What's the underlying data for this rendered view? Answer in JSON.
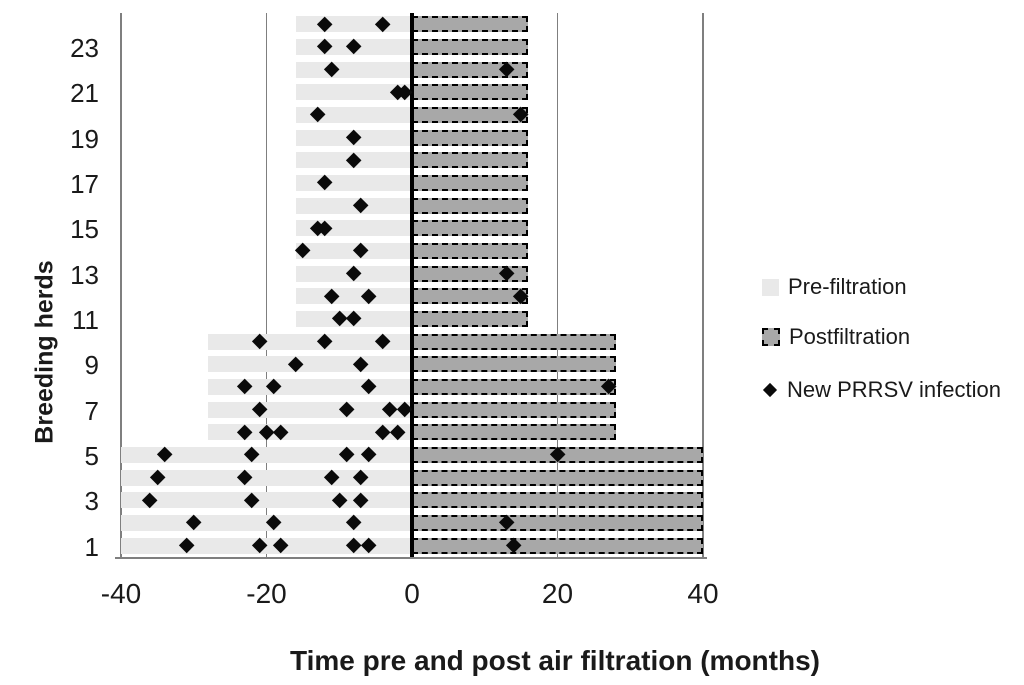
{
  "chart_data": {
    "type": "bar",
    "subtype": "diverging-horizontal-with-scatter-markers",
    "xlabel": "Time pre and post air filtration (months)",
    "ylabel": "Breeding herds",
    "xlim": [
      -40,
      40
    ],
    "x_ticks": [
      -40,
      -20,
      0,
      20,
      40
    ],
    "x_gridlines": [
      -40,
      -20,
      20,
      40
    ],
    "y_ticks": [
      1,
      3,
      5,
      7,
      9,
      11,
      13,
      15,
      17,
      19,
      21,
      23
    ],
    "grid": "vertical-major-only",
    "legend_position": "right",
    "legend": [
      {
        "label": "Pre-filtration",
        "swatch": "light-gray-square"
      },
      {
        "label": "Postfiltration",
        "swatch": "gray-dashed-square"
      },
      {
        "label": "New PRRSV infection",
        "swatch": "black-diamond"
      }
    ],
    "series_units": "months",
    "herds": [
      {
        "herd": 1,
        "pre": -40,
        "post": 40,
        "infections": [
          -31,
          -21,
          -18,
          -8,
          -6,
          14
        ]
      },
      {
        "herd": 2,
        "pre": -40,
        "post": 40,
        "infections": [
          -30,
          -19,
          -8,
          13
        ]
      },
      {
        "herd": 3,
        "pre": -40,
        "post": 40,
        "infections": [
          -36,
          -22,
          -10,
          -7
        ]
      },
      {
        "herd": 4,
        "pre": -40,
        "post": 40,
        "infections": [
          -35,
          -23,
          -11,
          -7
        ]
      },
      {
        "herd": 5,
        "pre": -40,
        "post": 40,
        "infections": [
          -34,
          -22,
          -9,
          -6,
          20
        ]
      },
      {
        "herd": 6,
        "pre": -28,
        "post": 28,
        "infections": [
          -23,
          -20,
          -18,
          -4,
          -2
        ]
      },
      {
        "herd": 7,
        "pre": -28,
        "post": 28,
        "infections": [
          -21,
          -9,
          -3,
          -1
        ]
      },
      {
        "herd": 8,
        "pre": -28,
        "post": 28,
        "infections": [
          -23,
          -19,
          -6,
          27
        ]
      },
      {
        "herd": 9,
        "pre": -28,
        "post": 28,
        "infections": [
          -16,
          -7
        ]
      },
      {
        "herd": 10,
        "pre": -28,
        "post": 28,
        "infections": [
          -21,
          -12,
          -4
        ]
      },
      {
        "herd": 11,
        "pre": -16,
        "post": 16,
        "infections": [
          -10,
          -8
        ]
      },
      {
        "herd": 12,
        "pre": -16,
        "post": 16,
        "infections": [
          -11,
          -6,
          15
        ]
      },
      {
        "herd": 13,
        "pre": -16,
        "post": 16,
        "infections": [
          -8,
          13
        ]
      },
      {
        "herd": 14,
        "pre": -16,
        "post": 16,
        "infections": [
          -15,
          -7
        ]
      },
      {
        "herd": 15,
        "pre": -16,
        "post": 16,
        "infections": [
          -13,
          -12
        ]
      },
      {
        "herd": 16,
        "pre": -16,
        "post": 16,
        "infections": [
          -7
        ]
      },
      {
        "herd": 17,
        "pre": -16,
        "post": 16,
        "infections": [
          -12
        ]
      },
      {
        "herd": 18,
        "pre": -16,
        "post": 16,
        "infections": [
          -8
        ]
      },
      {
        "herd": 19,
        "pre": -16,
        "post": 16,
        "infections": [
          -8
        ]
      },
      {
        "herd": 20,
        "pre": -16,
        "post": 16,
        "infections": [
          -13,
          15
        ]
      },
      {
        "herd": 21,
        "pre": -16,
        "post": 16,
        "infections": [
          -2,
          -1
        ]
      },
      {
        "herd": 22,
        "pre": -16,
        "post": 16,
        "infections": [
          -11,
          13
        ]
      },
      {
        "herd": 23,
        "pre": -16,
        "post": 16,
        "infections": [
          -12,
          -8
        ]
      },
      {
        "herd": 24,
        "pre": -16,
        "post": 16,
        "infections": [
          -12,
          -4
        ]
      }
    ],
    "colors": {
      "pre_bar": "#e9e9e9",
      "post_bar": "#a8a8a8",
      "post_bar_border": "#000000",
      "marker": "#0a0a0a",
      "gridline": "#7f7f7f",
      "zero_line": "#000000",
      "text": "#1a1a1a"
    }
  }
}
